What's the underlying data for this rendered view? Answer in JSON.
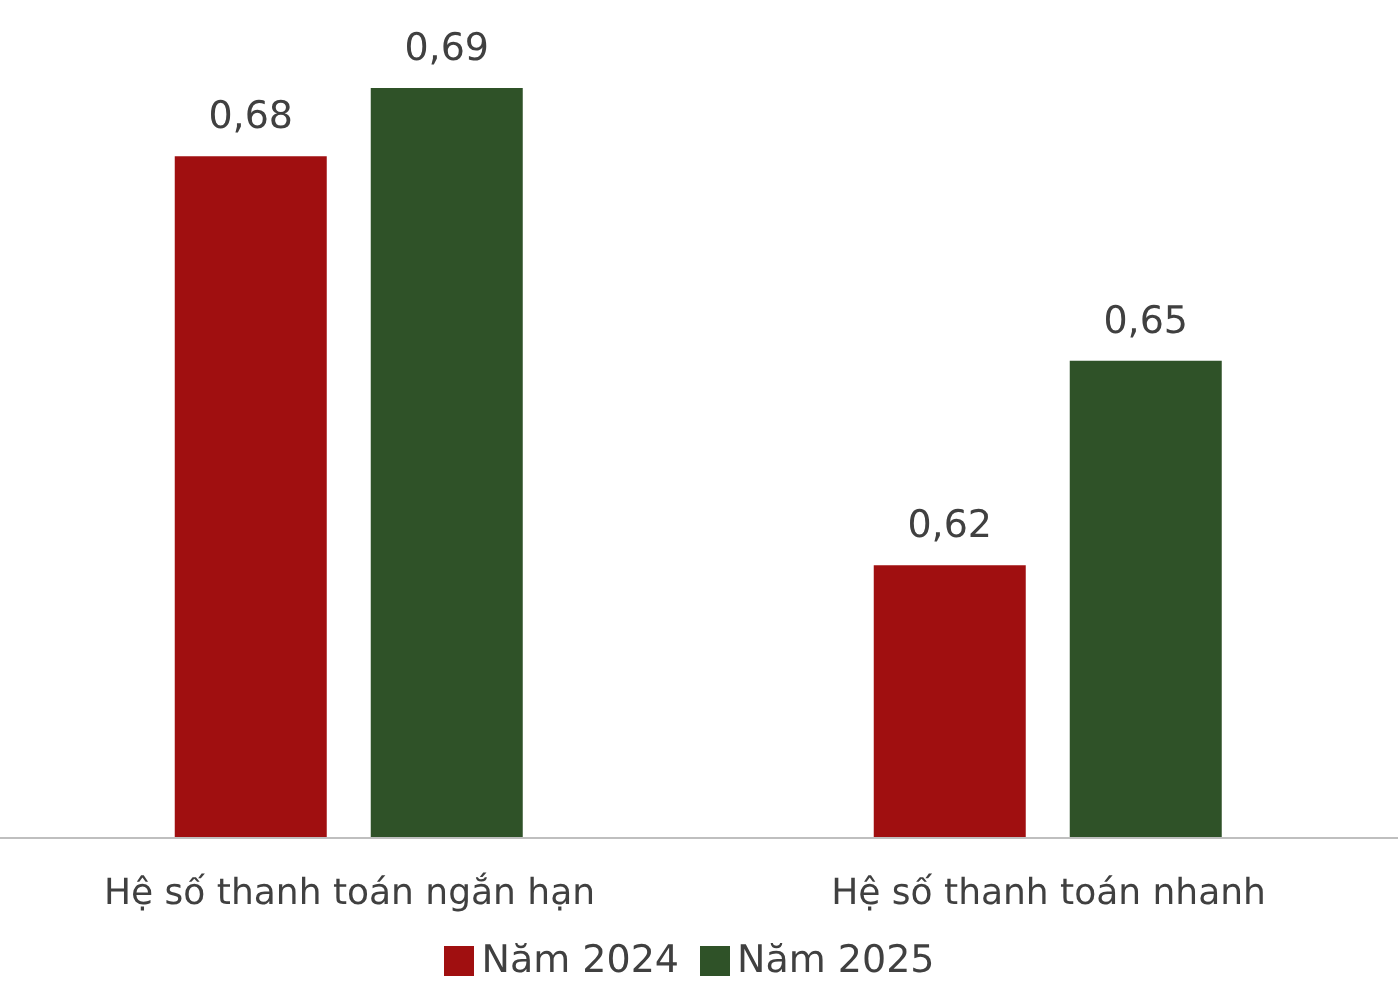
{
  "chart_data": {
    "type": "bar",
    "categories": [
      "Hệ số thanh toán ngắn hạn",
      "Hệ số thanh toán nhanh"
    ],
    "series": [
      {
        "name": "Năm 2024",
        "color": "#a00f10",
        "values": [
          0.68,
          0.62
        ],
        "value_labels": [
          "0,68",
          "0,62"
        ]
      },
      {
        "name": "Năm 2025",
        "color": "#2f5228",
        "values": [
          0.69,
          0.65
        ],
        "value_labels": [
          "0,69",
          "0,65"
        ]
      }
    ],
    "ylim": [
      0.58,
      0.69
    ],
    "tick_labels": "x",
    "grid": false,
    "legend": "bottom"
  }
}
